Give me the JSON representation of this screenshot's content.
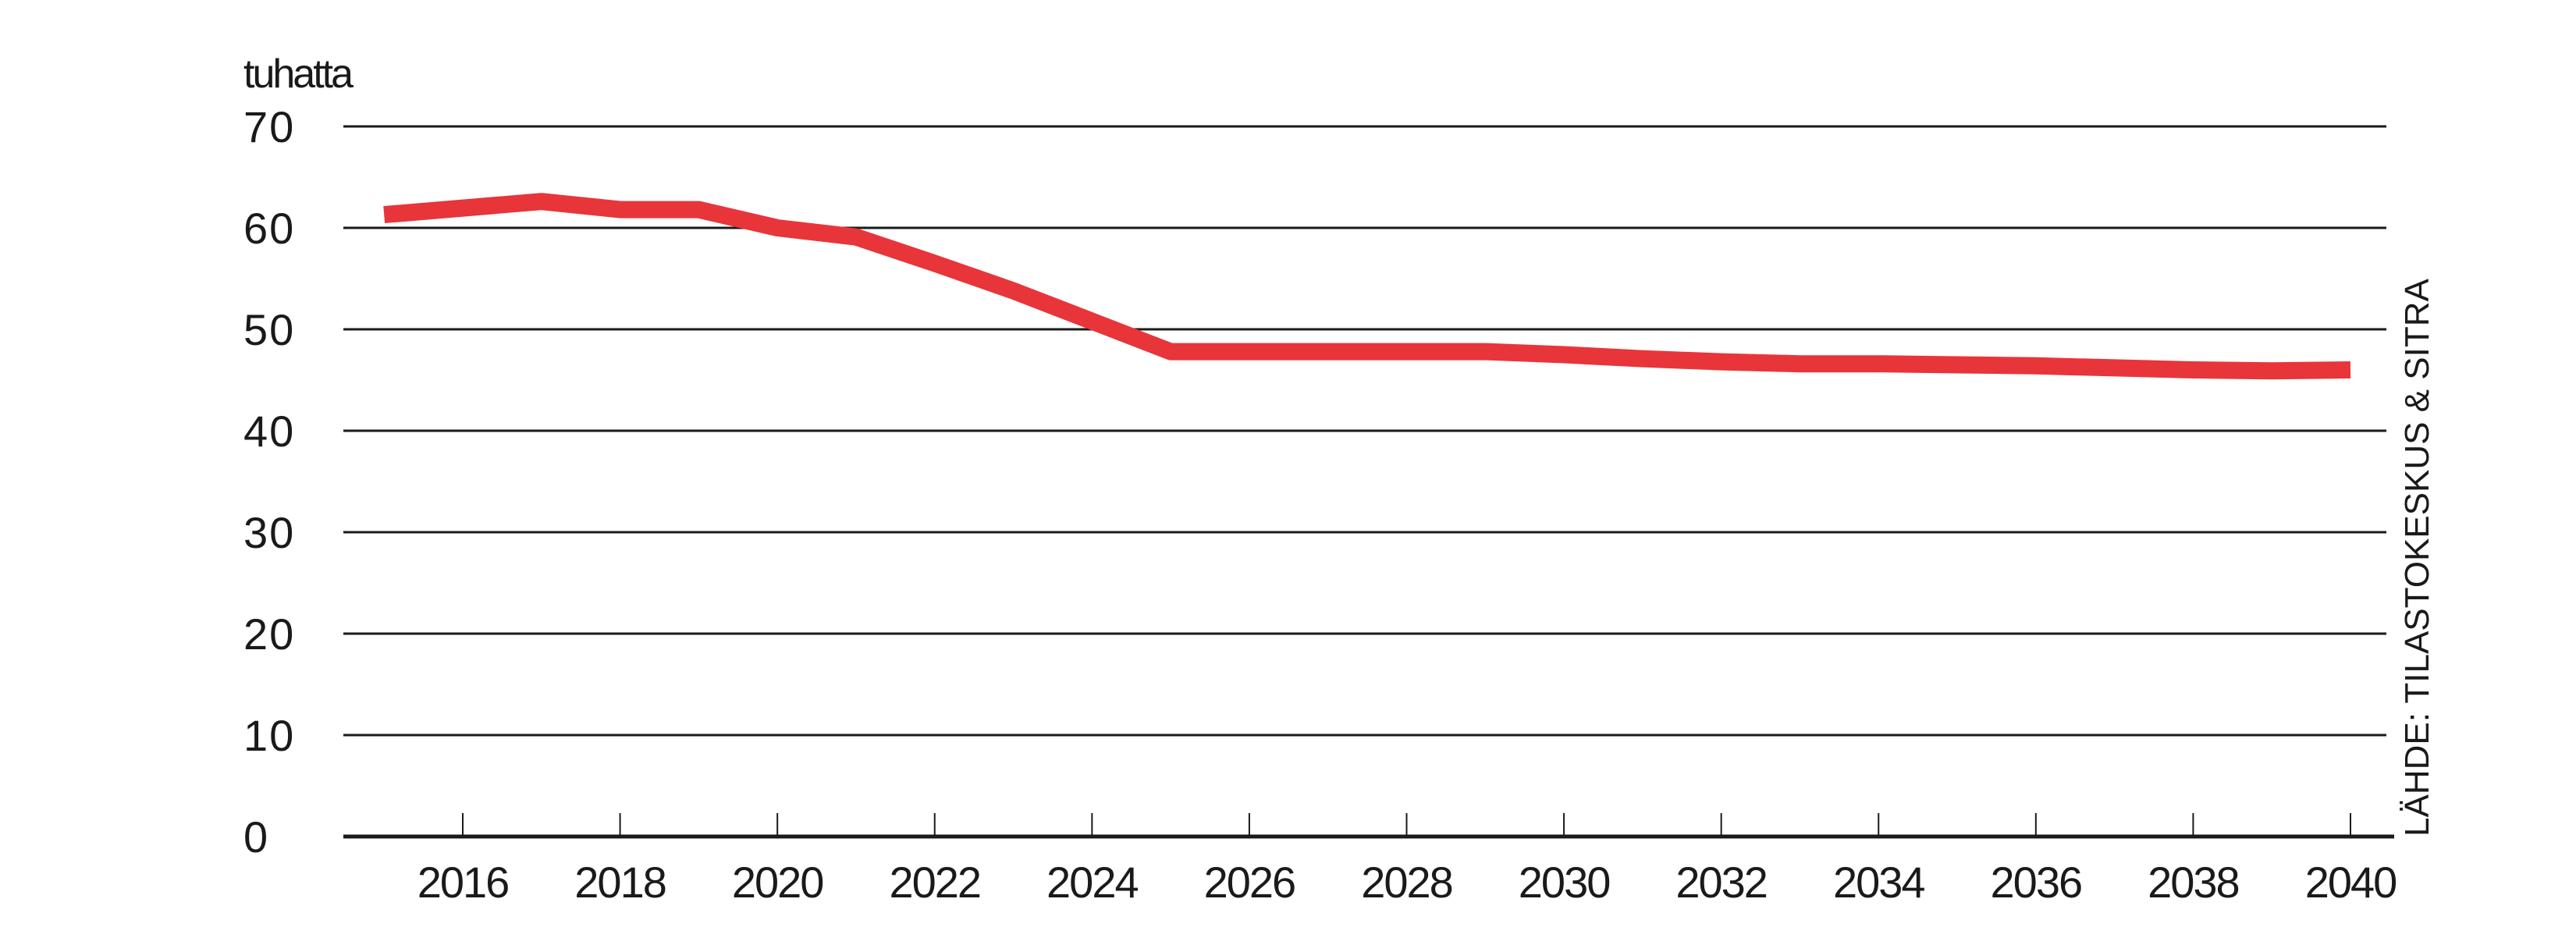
{
  "chart_data": {
    "type": "line",
    "unit_label": "tuhatta",
    "source": "LÄHDE: TILASTOKESKUS & SITRA",
    "xlim": [
      2014.5,
      2041
    ],
    "ylim": [
      0,
      70
    ],
    "y_ticks": [
      0,
      10,
      20,
      30,
      40,
      50,
      60,
      70
    ],
    "x_ticks": [
      2016,
      2018,
      2020,
      2022,
      2024,
      2026,
      2028,
      2030,
      2032,
      2034,
      2036,
      2038,
      2040
    ],
    "grid": true,
    "line_color": "#e8353a",
    "series": [
      {
        "x": [
          2015,
          2017,
          2018,
          2019,
          2020,
          2021,
          2022,
          2023,
          2024,
          2025,
          2026,
          2027,
          2028,
          2029,
          2030,
          2031,
          2032,
          2033,
          2034,
          2035,
          2036,
          2037,
          2038,
          2039,
          2040
        ],
        "values": [
          61.3,
          62.6,
          61.8,
          61.8,
          60.0,
          59.1,
          56.5,
          53.8,
          50.8,
          47.8,
          47.8,
          47.8,
          47.8,
          47.8,
          47.5,
          47.1,
          46.8,
          46.6,
          46.6,
          46.5,
          46.4,
          46.2,
          46.0,
          45.9,
          46.0
        ]
      }
    ]
  }
}
